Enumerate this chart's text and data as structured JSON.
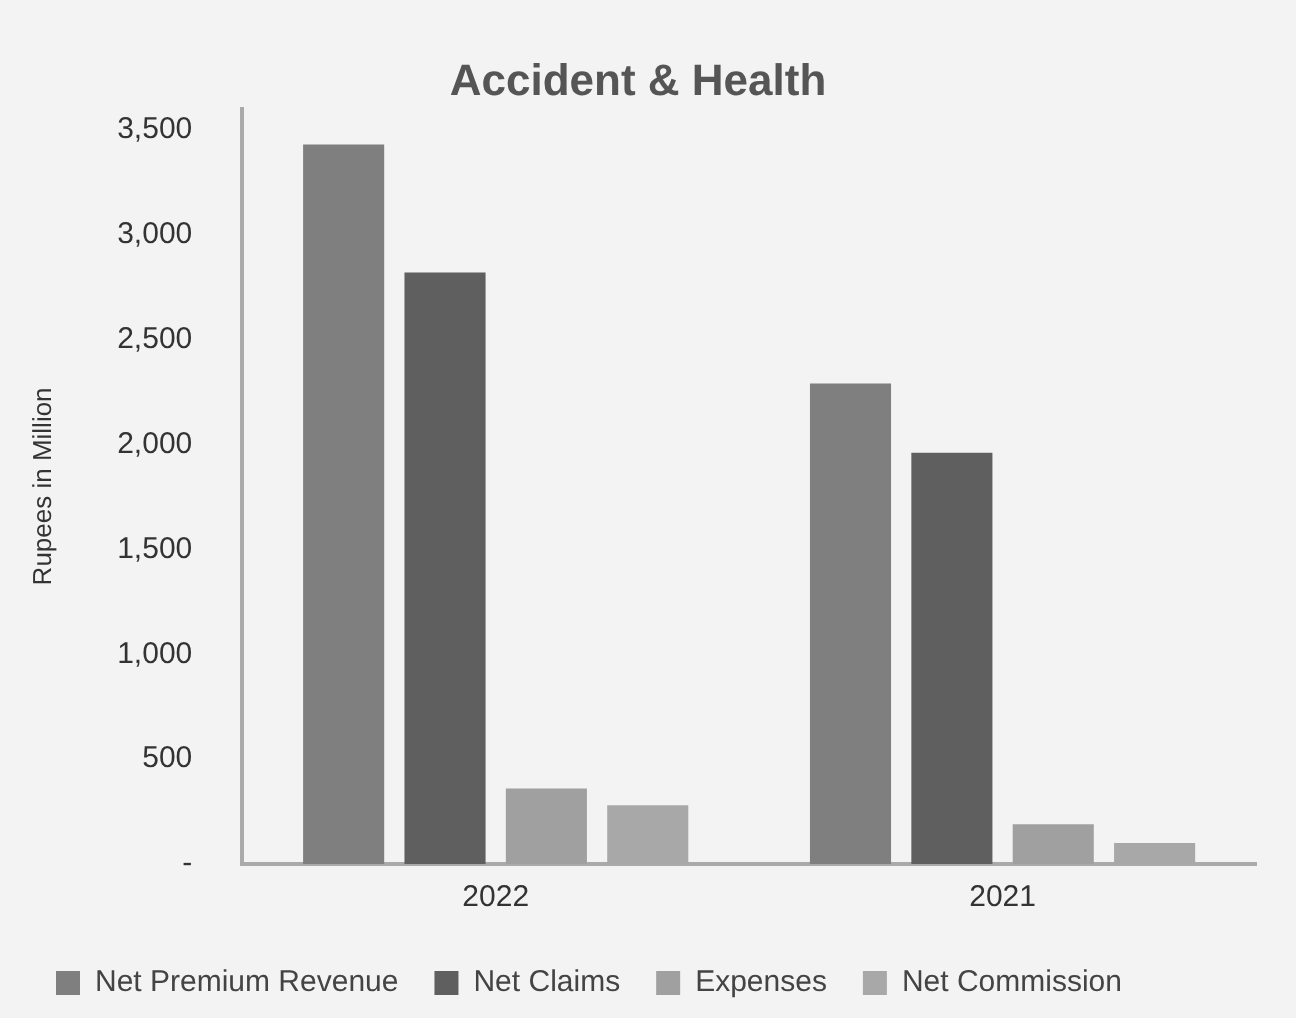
{
  "chart_data": {
    "type": "bar",
    "title": "Accident & Health",
    "ylabel": "Rupees in Million",
    "categories": [
      "2022",
      "2021"
    ],
    "series": [
      {
        "name": "Net Premium Revenue",
        "color": "#7f7f7f",
        "values": [
          3430,
          2290
        ]
      },
      {
        "name": "Net Claims",
        "color": "#5f5f5f",
        "values": [
          2820,
          1960
        ]
      },
      {
        "name": "Expenses",
        "color": "#a0a0a0",
        "values": [
          360,
          190
        ]
      },
      {
        "name": "Net Commission",
        "color": "#a8a8a8",
        "values": [
          280,
          100
        ]
      }
    ],
    "ylim": [
      0,
      3600
    ],
    "yticks": [
      {
        "value": 0,
        "label": "-"
      },
      {
        "value": 500,
        "label": "500"
      },
      {
        "value": 1000,
        "label": "1,000"
      },
      {
        "value": 1500,
        "label": "1,500"
      },
      {
        "value": 2000,
        "label": "2,000"
      },
      {
        "value": 2500,
        "label": "2,500"
      },
      {
        "value": 3000,
        "label": "3,000"
      },
      {
        "value": 3500,
        "label": "3,500"
      }
    ],
    "grid": false,
    "legend": "bottom"
  }
}
